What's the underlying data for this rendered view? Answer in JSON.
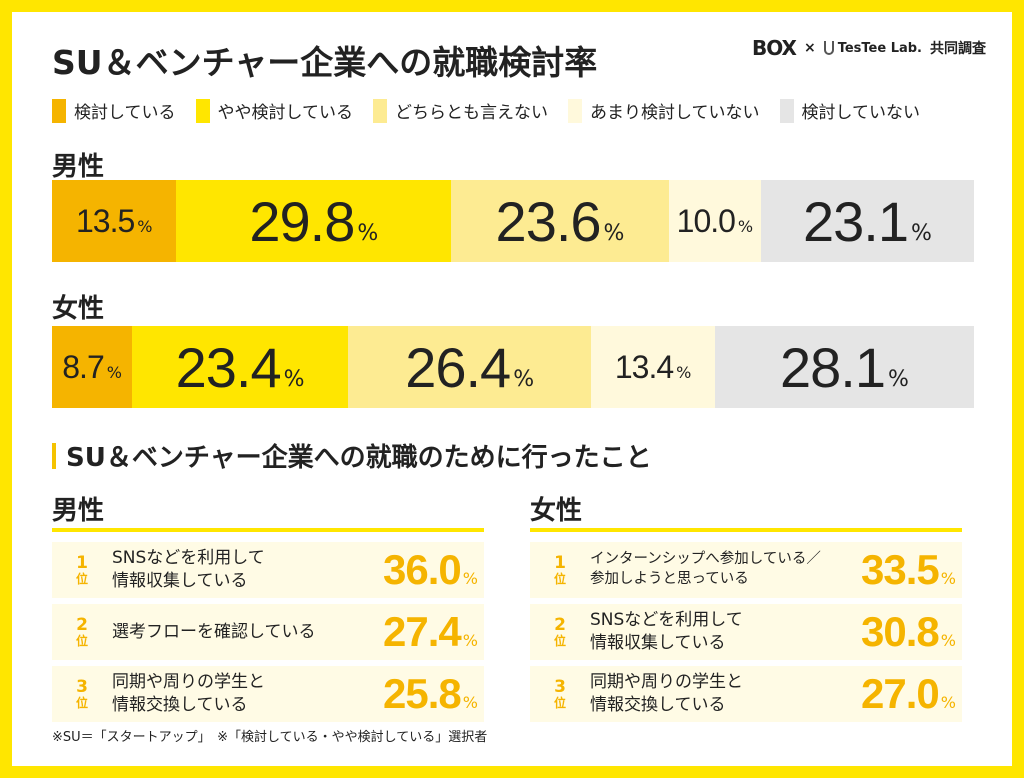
{
  "title": "SU＆ベンチャー企業への就職検討率",
  "brand": {
    "box": "BOX",
    "cross": "×",
    "testee": "TesTee Lab.",
    "joint": "共同調査"
  },
  "chart_data": {
    "type": "bar",
    "subtype": "stacked-100-horizontal",
    "legend": [
      {
        "label": "検討している",
        "color": "#F5B400"
      },
      {
        "label": "やや検討している",
        "color": "#FFE600"
      },
      {
        "label": "どちらとも言えない",
        "color": "#FDEB92"
      },
      {
        "label": "あまり検討していない",
        "color": "#FFF9DC"
      },
      {
        "label": "検討していない",
        "color": "#E5E5E5"
      }
    ],
    "categories": [
      "男性",
      "女性"
    ],
    "series": [
      {
        "name": "検討している",
        "values": [
          13.5,
          8.7
        ]
      },
      {
        "name": "やや検討している",
        "values": [
          29.8,
          23.4
        ]
      },
      {
        "name": "どちらとも言えない",
        "values": [
          23.6,
          26.4
        ]
      },
      {
        "name": "あまり検討していない",
        "values": [
          10.0,
          13.4
        ]
      },
      {
        "name": "検討していない",
        "values": [
          23.1,
          28.1
        ]
      }
    ],
    "value_labels": [
      [
        "13.5",
        "29.8",
        "23.6",
        "10.0",
        "23.1"
      ],
      [
        "8.7",
        "23.4",
        "26.4",
        "13.4",
        "28.1"
      ]
    ],
    "unit": "%"
  },
  "section_title": "SU＆ベンチャー企業への就職のために行ったこと",
  "rankings": [
    {
      "label": "男性",
      "items": [
        {
          "rank": "1",
          "suffix": "位",
          "lines": [
            "SNSなどを利用して",
            "情報収集している"
          ],
          "value": "36.0",
          "unit": "%"
        },
        {
          "rank": "2",
          "suffix": "位",
          "lines": [
            "選考フローを確認している",
            ""
          ],
          "value": "27.4",
          "unit": "%"
        },
        {
          "rank": "3",
          "suffix": "位",
          "lines": [
            "同期や周りの学生と",
            "情報交換している"
          ],
          "value": "25.8",
          "unit": "%"
        }
      ]
    },
    {
      "label": "女性",
      "items": [
        {
          "rank": "1",
          "suffix": "位",
          "lines": [
            "インターンシップへ参加している／",
            "参加しようと思っている"
          ],
          "value": "33.5",
          "unit": "%"
        },
        {
          "rank": "2",
          "suffix": "位",
          "lines": [
            "SNSなどを利用して",
            "情報収集している"
          ],
          "value": "30.8",
          "unit": "%"
        },
        {
          "rank": "3",
          "suffix": "位",
          "lines": [
            "同期や周りの学生と",
            "情報交換している"
          ],
          "value": "27.0",
          "unit": "%"
        }
      ]
    }
  ],
  "footnote": "※SU＝「スタートアップ」　※「検討している・やや検討している」選択者"
}
